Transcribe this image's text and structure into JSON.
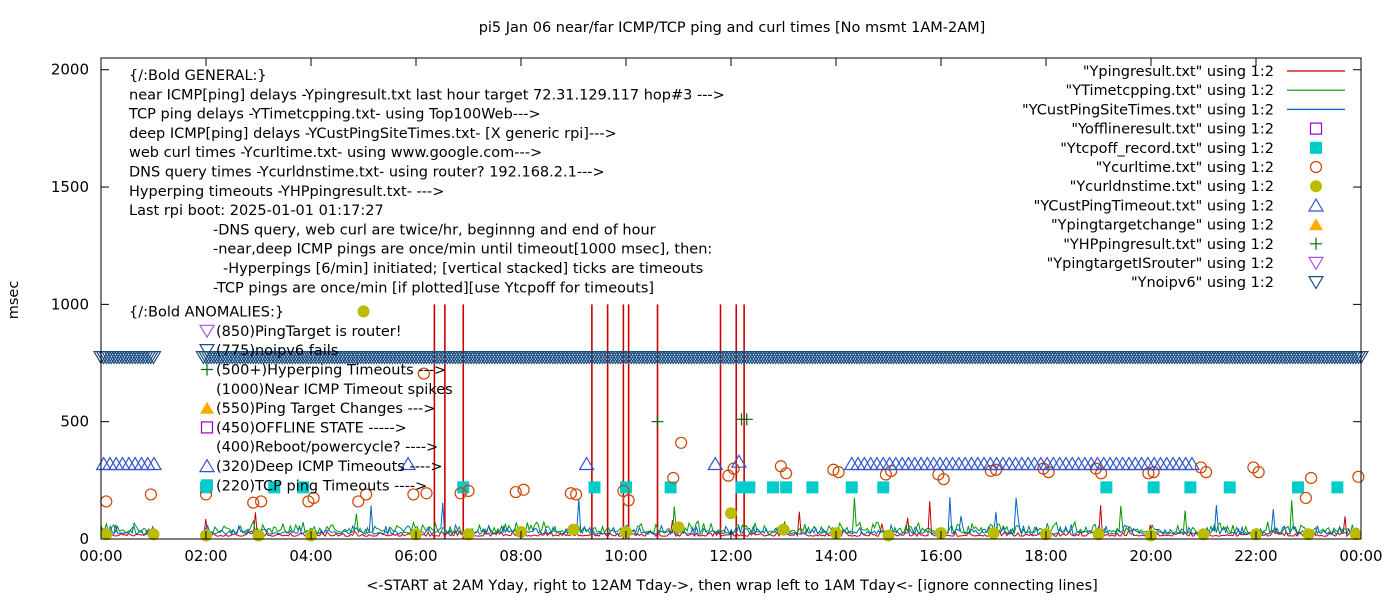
{
  "chart_data": {
    "type": "scatter",
    "title": "pi5 Jan 06  near/far ICMP/TCP ping and curl times [No msmt 1AM-2AM]",
    "xlabel": "<-START at 2AM Yday, right to 12AM Tday->, then wrap left to 1AM Tday<- [ignore connecting lines]",
    "ylabel": "msec",
    "xlim": [
      0,
      24
    ],
    "ylim": [
      0,
      2050
    ],
    "x_tick_labels": [
      "00:00",
      "02:00",
      "04:00",
      "06:00",
      "08:00",
      "10:00",
      "12:00",
      "14:00",
      "16:00",
      "18:00",
      "20:00",
      "22:00",
      "00:00"
    ],
    "y_tick_labels": [
      "0",
      "500",
      "1000",
      "1500",
      "2000"
    ],
    "y_ticks": [
      0,
      500,
      1000,
      1500,
      2000
    ],
    "grid": false,
    "legend_placement": "top-right",
    "series": [
      {
        "name": "\"Ypingresult.txt\" using 1:2",
        "style": "line",
        "color": "#cc0000",
        "baseline": 12,
        "spikes": [
          [
            6.35,
            1000
          ],
          [
            6.55,
            1000
          ],
          [
            6.9,
            1000
          ],
          [
            9.35,
            1000
          ],
          [
            9.65,
            1000
          ],
          [
            9.95,
            1000
          ],
          [
            10.05,
            1000
          ],
          [
            10.6,
            1000
          ],
          [
            11.8,
            1000
          ],
          [
            12.1,
            1000
          ],
          [
            12.25,
            1000
          ]
        ]
      },
      {
        "name": "\"YTimetcpping.txt\" using 1:2",
        "style": "line",
        "color": "#009900",
        "baseline": 25
      },
      {
        "name": "\"YCustPingSiteTimes.txt\" using 1:2",
        "style": "line",
        "color": "#0066cc",
        "baseline": 20
      },
      {
        "name": "\"Yofflineresult.txt\" using 1:2",
        "style": "open-square",
        "color": "#9900cc",
        "points": []
      },
      {
        "name": "\"Ytcpoff_record.txt\" using 1:2",
        "style": "filled-square",
        "color": "#00cccc",
        "points": [
          [
            2.0,
            220
          ],
          [
            3.3,
            220
          ],
          [
            3.85,
            220
          ],
          [
            6.9,
            220
          ],
          [
            9.4,
            220
          ],
          [
            10.0,
            220
          ],
          [
            10.85,
            220
          ],
          [
            12.2,
            220
          ],
          [
            12.35,
            220
          ],
          [
            12.8,
            220
          ],
          [
            13.05,
            220
          ],
          [
            13.55,
            220
          ],
          [
            14.3,
            220
          ],
          [
            14.9,
            220
          ],
          [
            19.15,
            220
          ],
          [
            20.05,
            220
          ],
          [
            20.75,
            220
          ],
          [
            21.5,
            220
          ],
          [
            22.8,
            220
          ],
          [
            23.55,
            220
          ]
        ]
      },
      {
        "name": "\"Ycurltime.txt\" using 1:2",
        "style": "open-circle",
        "color": "#cc4400",
        "points": [
          [
            0.1,
            160
          ],
          [
            0.95,
            190
          ],
          [
            2.0,
            190
          ],
          [
            2.9,
            155
          ],
          [
            3.05,
            160
          ],
          [
            3.95,
            160
          ],
          [
            4.05,
            175
          ],
          [
            4.9,
            160
          ],
          [
            5.05,
            190
          ],
          [
            5.95,
            190
          ],
          [
            6.15,
            705
          ],
          [
            6.2,
            195
          ],
          [
            6.85,
            195
          ],
          [
            7.0,
            205
          ],
          [
            7.9,
            200
          ],
          [
            8.05,
            210
          ],
          [
            8.95,
            195
          ],
          [
            9.05,
            190
          ],
          [
            9.95,
            205
          ],
          [
            10.05,
            165
          ],
          [
            10.9,
            260
          ],
          [
            11.05,
            410
          ],
          [
            11.95,
            270
          ],
          [
            12.05,
            300
          ],
          [
            12.95,
            310
          ],
          [
            13.05,
            280
          ],
          [
            13.95,
            295
          ],
          [
            14.05,
            285
          ],
          [
            14.95,
            275
          ],
          [
            15.05,
            290
          ],
          [
            15.95,
            275
          ],
          [
            16.05,
            255
          ],
          [
            16.95,
            290
          ],
          [
            17.05,
            295
          ],
          [
            17.95,
            300
          ],
          [
            18.05,
            285
          ],
          [
            18.95,
            300
          ],
          [
            19.05,
            280
          ],
          [
            19.95,
            280
          ],
          [
            20.05,
            285
          ],
          [
            20.95,
            305
          ],
          [
            21.05,
            285
          ],
          [
            21.95,
            305
          ],
          [
            22.05,
            285
          ],
          [
            22.95,
            175
          ],
          [
            23.05,
            260
          ],
          [
            23.95,
            265
          ]
        ]
      },
      {
        "name": "\"Ycurldnstime.txt\" using 1:2",
        "style": "filled-circle",
        "color": "#bbbb00",
        "points": [
          [
            0.1,
            20
          ],
          [
            1.0,
            20
          ],
          [
            2.0,
            15
          ],
          [
            3.0,
            15
          ],
          [
            4.0,
            15
          ],
          [
            5.0,
            970
          ],
          [
            6.0,
            20
          ],
          [
            7.0,
            20
          ],
          [
            8.0,
            30
          ],
          [
            9.0,
            40
          ],
          [
            10.0,
            30
          ],
          [
            11.0,
            50
          ],
          [
            12.0,
            110
          ],
          [
            13.0,
            40
          ],
          [
            14.0,
            25
          ],
          [
            15.0,
            15
          ],
          [
            16.0,
            25
          ],
          [
            17.0,
            25
          ],
          [
            18.0,
            20
          ],
          [
            19.0,
            20
          ],
          [
            20.0,
            15
          ],
          [
            21.0,
            20
          ],
          [
            22.0,
            20
          ],
          [
            23.0,
            20
          ],
          [
            23.9,
            20
          ]
        ]
      },
      {
        "name": "\"YCustPingTimeout.txt\" using 1:2",
        "style": "open-triangle",
        "color": "#3355cc",
        "runs": [
          [
            0.05,
            1.05,
            320
          ],
          [
            14.3,
            20.8,
            320
          ]
        ],
        "points": [
          [
            5.85,
            320
          ],
          [
            9.25,
            320
          ],
          [
            11.7,
            320
          ],
          [
            12.15,
            330
          ]
        ]
      },
      {
        "name": "\"Ypingtargetchange\" using 1:2",
        "style": "filled-triangle",
        "color": "#ffaa00",
        "points": []
      },
      {
        "name": "\"YHPpingresult.txt\" using 1:2",
        "style": "plus",
        "color": "#006600",
        "points": [
          [
            10.6,
            500
          ],
          [
            12.2,
            510
          ],
          [
            12.3,
            510
          ]
        ]
      },
      {
        "name": "\"YpingtargetISrouter\" using 1:2",
        "style": "open-triangle-down",
        "color": "#aa55dd",
        "points": []
      },
      {
        "name": "\"Ynoipv6\" using 1:2",
        "style": "open-triangle-down",
        "color": "#1a4d80",
        "runs": [
          [
            0.0,
            24.0,
            775
          ]
        ]
      }
    ],
    "annotations": {
      "general_header": "{/:Bold GENERAL:}",
      "general_lines": [
        "near ICMP[ping] delays -Ypingresult.txt last hour target 72.31.129.117 hop#3 --->",
        "TCP ping delays -YTimetcpping.txt- using Top100Web--->",
        "deep ICMP[ping] delays -YCustPingSiteTimes.txt- [X generic rpi]--->",
        "web curl times -Ycurltime.txt- using www.google.com--->",
        "DNS query times -Ycurldnstime.txt- using router? 192.168.2.1--->",
        "Hyperping timeouts -YHPpingresult.txt- --->",
        "Last rpi boot: 2025-01-01 01:17:27"
      ],
      "indent_lines": [
        "-DNS query, web curl are twice/hr, beginnng and end of hour",
        "-near,deep ICMP pings are once/min until timeout[1000 msec], then:",
        "-Hyperpings [6/min] initiated; [vertical stacked] ticks are timeouts",
        "-TCP pings are once/min [if plotted][use Ytcpoff for timeouts]"
      ],
      "anomalies_header": "{/:Bold ANOMALIES:}",
      "anomaly_lines": [
        "(850)PingTarget is router!",
        "(775)noipv6 fails",
        "(500+)Hyperping Timeouts --->",
        "(1000)Near ICMP Timeout spikes",
        "(550)Ping Target Changes --->",
        "(450)OFFLINE STATE ----->",
        "(400)Reboot/powercycle? ---->",
        "(320)Deep ICMP Timeouts ---->",
        "(220)TCP ping Timeouts ---->"
      ],
      "anomaly_icons": [
        "open-triangle-down",
        "open-triangle-down",
        "plus",
        "line",
        "filled-triangle",
        "open-square",
        "",
        "open-triangle",
        "filled-square"
      ]
    }
  }
}
